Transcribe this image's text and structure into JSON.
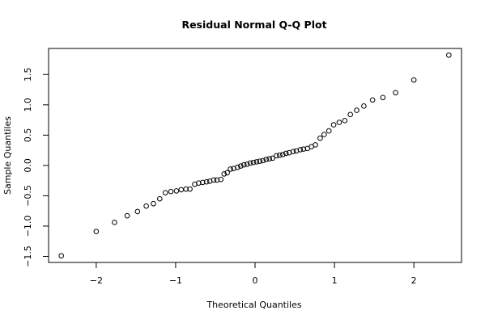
{
  "chart_data": {
    "type": "scatter",
    "title": "Residual Normal Q-Q Plot",
    "xlabel": "Theoretical Quantiles",
    "ylabel": "Sample Quantiles",
    "xlim": [
      -2.6,
      2.6
    ],
    "ylim": [
      -1.6,
      1.93
    ],
    "xticks": [
      -2,
      -1,
      0,
      1,
      2
    ],
    "xtick_labels": [
      "−2",
      "−1",
      "0",
      "1",
      "2"
    ],
    "yticks": [
      -1.5,
      -1.0,
      -0.5,
      0.0,
      0.5,
      1.0,
      1.5
    ],
    "ytick_labels": [
      "−1.5",
      "−1.0",
      "−0.5",
      "0.0",
      "0.5",
      "1.0",
      "1.5"
    ],
    "grid": false,
    "points": [
      [
        -2.44,
        -1.49
      ],
      [
        -2.0,
        -1.09
      ],
      [
        -1.77,
        -0.94
      ],
      [
        -1.61,
        -0.83
      ],
      [
        -1.48,
        -0.76
      ],
      [
        -1.37,
        -0.67
      ],
      [
        -1.28,
        -0.63
      ],
      [
        -1.2,
        -0.55
      ],
      [
        -1.13,
        -0.45
      ],
      [
        -1.06,
        -0.43
      ],
      [
        -0.99,
        -0.42
      ],
      [
        -0.93,
        -0.4
      ],
      [
        -0.87,
        -0.39
      ],
      [
        -0.82,
        -0.39
      ],
      [
        -0.76,
        -0.31
      ],
      [
        -0.71,
        -0.29
      ],
      [
        -0.66,
        -0.28
      ],
      [
        -0.61,
        -0.27
      ],
      [
        -0.57,
        -0.26
      ],
      [
        -0.52,
        -0.24
      ],
      [
        -0.48,
        -0.24
      ],
      [
        -0.43,
        -0.23
      ],
      [
        -0.39,
        -0.14
      ],
      [
        -0.35,
        -0.12
      ],
      [
        -0.31,
        -0.06
      ],
      [
        -0.27,
        -0.05
      ],
      [
        -0.22,
        -0.03
      ],
      [
        -0.18,
        -0.01
      ],
      [
        -0.14,
        0.01
      ],
      [
        -0.1,
        0.02
      ],
      [
        -0.06,
        0.04
      ],
      [
        -0.02,
        0.05
      ],
      [
        0.02,
        0.06
      ],
      [
        0.06,
        0.07
      ],
      [
        0.1,
        0.08
      ],
      [
        0.14,
        0.1
      ],
      [
        0.18,
        0.11
      ],
      [
        0.22,
        0.12
      ],
      [
        0.27,
        0.16
      ],
      [
        0.31,
        0.17
      ],
      [
        0.35,
        0.18
      ],
      [
        0.39,
        0.2
      ],
      [
        0.43,
        0.21
      ],
      [
        0.48,
        0.23
      ],
      [
        0.52,
        0.24
      ],
      [
        0.57,
        0.26
      ],
      [
        0.61,
        0.27
      ],
      [
        0.66,
        0.28
      ],
      [
        0.71,
        0.31
      ],
      [
        0.76,
        0.34
      ],
      [
        0.82,
        0.45
      ],
      [
        0.87,
        0.51
      ],
      [
        0.93,
        0.57
      ],
      [
        0.99,
        0.67
      ],
      [
        1.06,
        0.71
      ],
      [
        1.13,
        0.74
      ],
      [
        1.2,
        0.84
      ],
      [
        1.28,
        0.91
      ],
      [
        1.37,
        0.98
      ],
      [
        1.48,
        1.08
      ],
      [
        1.61,
        1.12
      ],
      [
        1.77,
        1.2
      ],
      [
        2.0,
        1.41
      ],
      [
        2.44,
        1.82
      ]
    ]
  }
}
